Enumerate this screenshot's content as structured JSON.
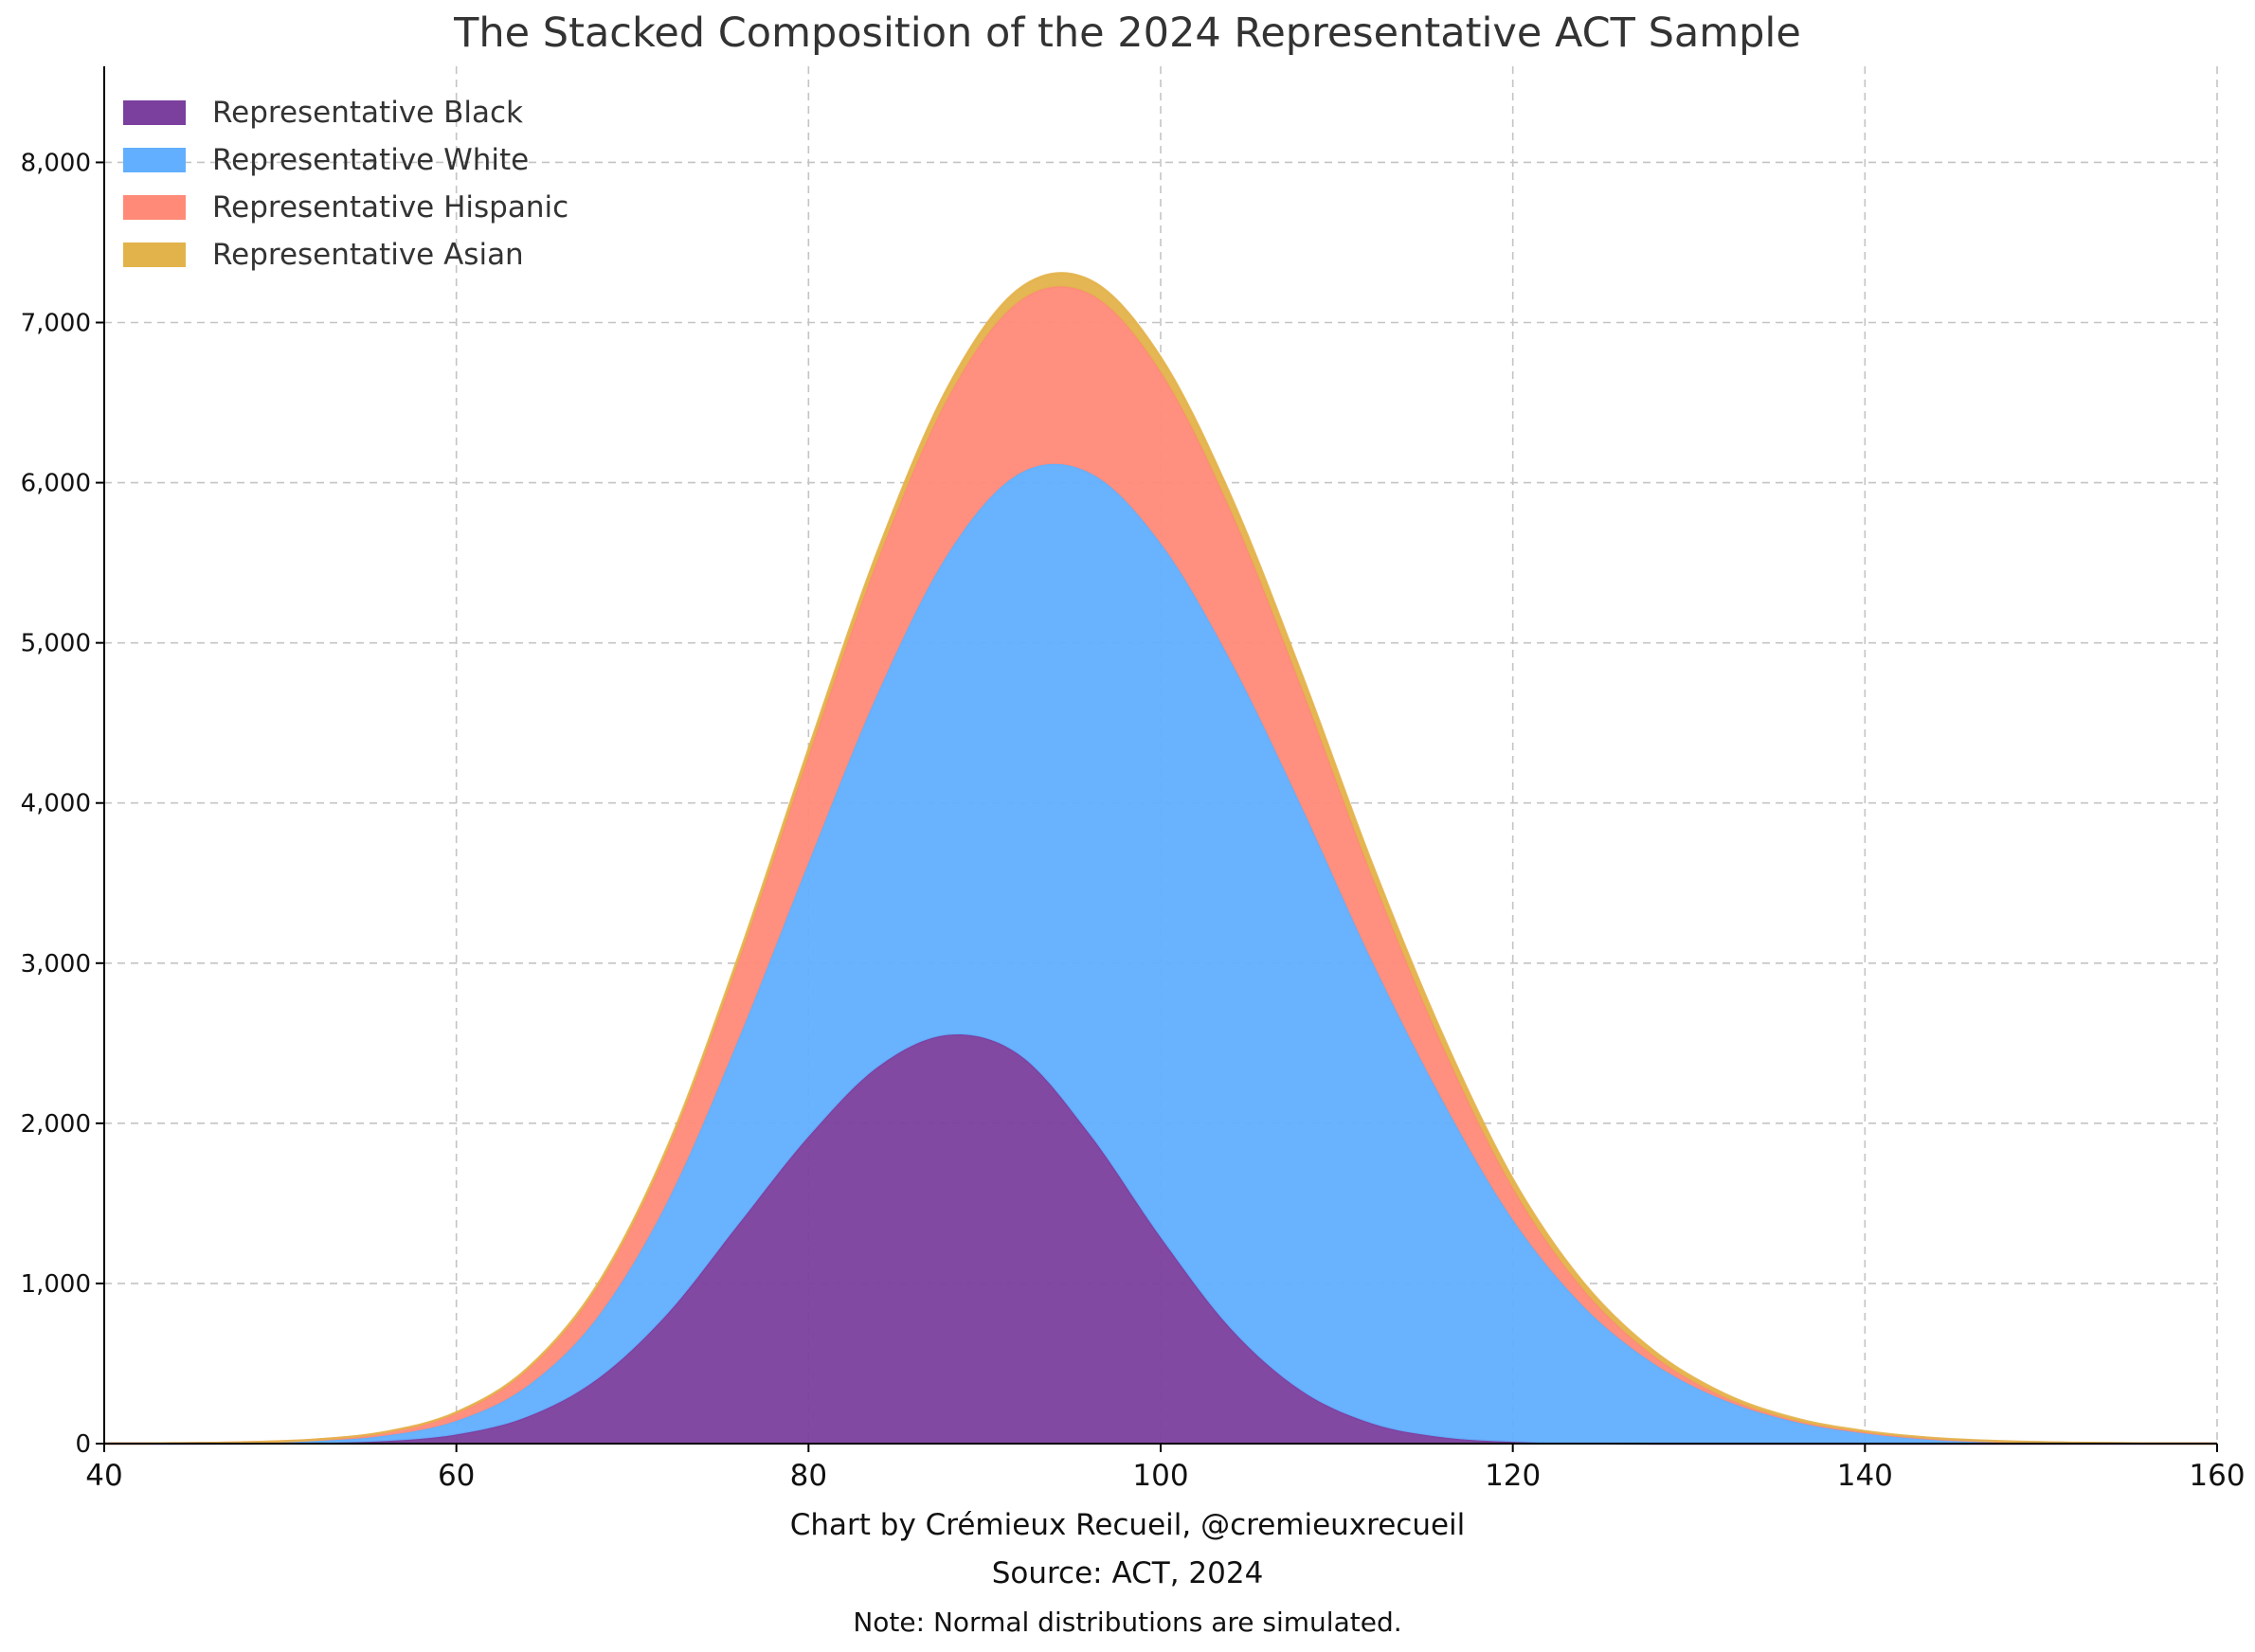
{
  "chart_data": {
    "type": "area",
    "stacked": true,
    "title": "The Stacked Composition of the 2024 Representative ACT Sample",
    "xlabel": "",
    "ylabel": "",
    "xlim": [
      40,
      160
    ],
    "ylim": [
      0,
      8600
    ],
    "x_ticks": [
      40,
      60,
      80,
      100,
      120,
      140,
      160
    ],
    "x_tick_labels": [
      "40",
      "60",
      "80",
      "100",
      "120",
      "140",
      "160"
    ],
    "y_ticks": [
      0,
      1000,
      2000,
      3000,
      4000,
      5000,
      6000,
      7000,
      8000
    ],
    "y_tick_labels": [
      "0",
      "1,000",
      "2,000",
      "3,000",
      "4,000",
      "5,000",
      "6,000",
      "7,000",
      "8,000"
    ],
    "grid": true,
    "legend_position": "top-left",
    "x": [
      40,
      44,
      48,
      52,
      56,
      60,
      64,
      68,
      72,
      76,
      80,
      84,
      88,
      92,
      96,
      100,
      104,
      108,
      112,
      116,
      120,
      124,
      128,
      132,
      136,
      140,
      144,
      148,
      152,
      156,
      160
    ],
    "series": [
      {
        "name": "Representative Black",
        "color": "#7B3F9E",
        "values": [
          0,
          0,
          1,
          4,
          16,
          57,
          166,
          402,
          812,
          1366,
          1917,
          2357,
          2553,
          2426,
          1927,
          1288,
          716,
          330,
          126,
          40,
          11,
          2,
          0,
          0,
          0,
          0,
          0,
          0,
          0,
          0,
          0
        ]
      },
      {
        "name": "Representative White",
        "color": "#61AFFE",
        "values": [
          0,
          1,
          4,
          12,
          34,
          85,
          190,
          384,
          701,
          1152,
          1709,
          2343,
          3016,
          3632,
          4133,
          4333,
          4166,
          3647,
          2887,
          2104,
          1386,
          856,
          499,
          271,
          137,
          67,
          28,
          12,
          4,
          1,
          0
        ]
      },
      {
        "name": "Representative Hispanic",
        "color": "#FF8A78",
        "values": [
          0,
          1,
          3,
          8,
          21,
          49,
          102,
          190,
          320,
          484,
          666,
          836,
          977,
          1077,
          1118,
          1071,
          938,
          742,
          530,
          342,
          199,
          105,
          49,
          20,
          8,
          3,
          1,
          0,
          0,
          0,
          0
        ]
      },
      {
        "name": "Representative Asian",
        "color": "#E3B34B",
        "values": [
          0,
          0,
          0,
          1,
          2,
          4,
          8,
          14,
          22,
          32,
          44,
          56,
          67,
          78,
          86,
          91,
          92,
          88,
          80,
          69,
          56,
          43,
          31,
          21,
          14,
          8,
          5,
          2,
          1,
          0,
          0
        ]
      }
    ]
  },
  "captions": {
    "credit": "Chart by Crémieux Recueil, @cremieuxrecueil",
    "source": "Source: ACT, 2024",
    "note": "Note: Normal distributions are simulated."
  }
}
